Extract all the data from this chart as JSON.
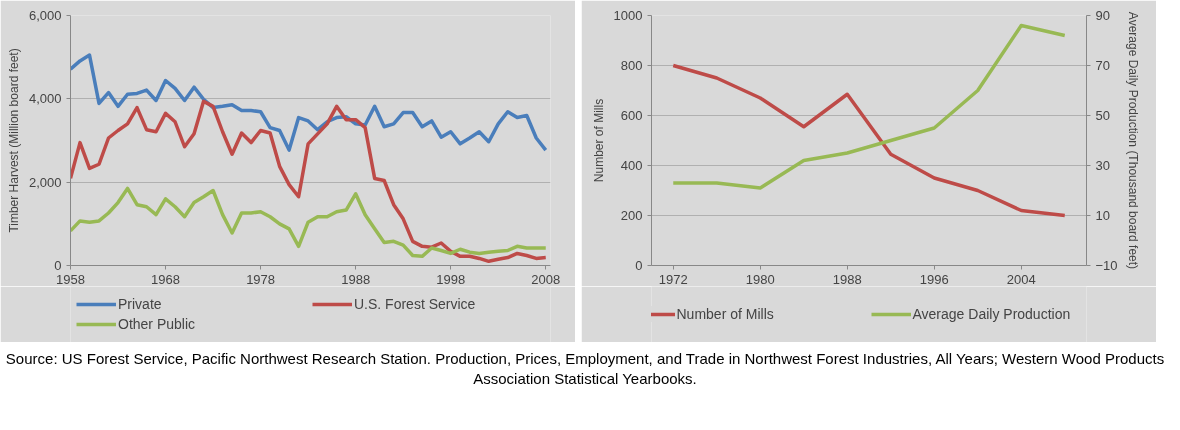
{
  "chart_data": [
    {
      "type": "line",
      "ylabel": "Timber Harvest (Million board feet)",
      "x": [
        1958,
        1959,
        1960,
        1961,
        1962,
        1963,
        1964,
        1965,
        1966,
        1967,
        1968,
        1969,
        1970,
        1971,
        1972,
        1973,
        1974,
        1975,
        1976,
        1977,
        1978,
        1979,
        1980,
        1981,
        1982,
        1983,
        1984,
        1985,
        1986,
        1987,
        1988,
        1989,
        1990,
        1991,
        1992,
        1993,
        1994,
        1995,
        1996,
        1997,
        1998,
        1999,
        2000,
        2001,
        2002,
        2003,
        2004,
        2005,
        2006,
        2007,
        2008
      ],
      "series": [
        {
          "name": "Private",
          "color": "#4a7ebb",
          "values": [
            4710,
            4910,
            5050,
            3890,
            4150,
            3820,
            4110,
            4130,
            4210,
            3960,
            4440,
            4250,
            3960,
            4280,
            3990,
            3790,
            3820,
            3860,
            3720,
            3720,
            3690,
            3310,
            3240,
            2770,
            3550,
            3470,
            3260,
            3450,
            3550,
            3570,
            3400,
            3370,
            3820,
            3330,
            3400,
            3670,
            3670,
            3330,
            3470,
            3080,
            3210,
            2920,
            3060,
            3210,
            2970,
            3400,
            3690,
            3550,
            3600,
            3060,
            2770
          ]
        },
        {
          "name": "U.S. Forest Service",
          "color": "#be4b48",
          "values": [
            2090,
            2950,
            2330,
            2430,
            3060,
            3240,
            3400,
            3790,
            3260,
            3210,
            3650,
            3450,
            2850,
            3160,
            3940,
            3820,
            3210,
            2670,
            3180,
            2950,
            3240,
            3180,
            2380,
            1940,
            1650,
            2920,
            3160,
            3400,
            3820,
            3500,
            3500,
            3310,
            2090,
            2040,
            1460,
            1120,
            580,
            460,
            440,
            540,
            340,
            220,
            220,
            170,
            100,
            150,
            190,
            290,
            240,
            170,
            190
          ]
        },
        {
          "name": "Other Public",
          "color": "#98b954",
          "values": [
            830,
            1070,
            1040,
            1070,
            1260,
            1510,
            1850,
            1460,
            1410,
            1220,
            1600,
            1410,
            1170,
            1510,
            1650,
            1800,
            1220,
            780,
            1260,
            1260,
            1290,
            1170,
            1000,
            880,
            460,
            1040,
            1170,
            1170,
            1290,
            1330,
            1720,
            1220,
            880,
            550,
            580,
            490,
            240,
            220,
            420,
            360,
            290,
            390,
            320,
            290,
            320,
            340,
            360,
            460,
            420,
            420,
            420
          ]
        }
      ],
      "xlim": [
        1958,
        2008.5
      ],
      "xticks": [
        1958,
        1968,
        1978,
        1988,
        1998,
        2008
      ],
      "ylim": [
        0,
        6000
      ],
      "yticks": [
        0,
        {
          "value": 2000,
          "label": "2,000"
        },
        {
          "value": 4000,
          "label": "4,000"
        },
        {
          "value": 6000,
          "label": "6,000"
        }
      ],
      "grid": "y",
      "legend": "bottom",
      "marker": "none",
      "line_style": "solid",
      "annotations": [
        "Source: US Forest Service, Pacific Northwest Research Station. Production, Prices, Employment, and Trade in Northwest Forest Industries, All Years; Western Wood Products Association Statistical Yearbooks."
      ]
    },
    {
      "type": "line",
      "ylabel": "Number of Mills",
      "y2label": "Average Daily Production (Thousand board feet)",
      "x": [
        1972,
        1976,
        1980,
        1984,
        1988,
        1992,
        1996,
        2000,
        2004,
        2008
      ],
      "series": [
        {
          "name": "Number of Mills",
          "color": "#be4b48",
          "values": [
            800,
            750,
            670,
            555,
            685,
            445,
            350,
            300,
            220,
            200
          ]
        },
        {
          "name": "Average Daily Production",
          "color": "#98b954",
          "axis": "y2",
          "values": [
            23,
            23,
            21,
            32,
            35,
            40,
            45,
            60,
            86,
            82
          ]
        }
      ],
      "xlim": [
        1970,
        2010
      ],
      "xticks": [
        1972,
        1980,
        1988,
        1996,
        2004
      ],
      "ylim": [
        0,
        1000
      ],
      "yticks": [
        0,
        200,
        400,
        600,
        800,
        1000
      ],
      "y2lim": [
        -10,
        90
      ],
      "y2ticks": [
        -10,
        10,
        30,
        50,
        70,
        90
      ],
      "grid": "y",
      "legend": "bottom",
      "marker": "none",
      "line_style": "solid"
    }
  ]
}
